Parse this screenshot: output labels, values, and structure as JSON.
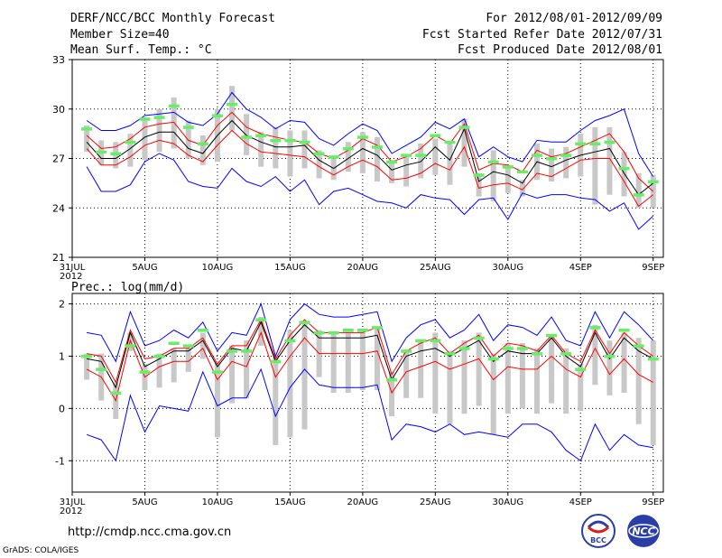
{
  "header": {
    "left": [
      "DERF/NCC/BCC Monthly Forecast",
      "Member Size=40",
      "Mean Surf. Temp.: °C"
    ],
    "right": [
      "For 2012/08/01-2012/09/09",
      "Fcst Started Refer Date 2012/07/31",
      "Fcst Produced Date 2012/08/01"
    ]
  },
  "footer": {
    "url": "http://cmdp.ncc.cma.gov.cn",
    "credit": "GrADS: COLA/IGES",
    "logo_left_text": "BCC",
    "logo_right_text": "NCC"
  },
  "colors": {
    "envelope": "#0000ff",
    "spread": "#ff0000",
    "mean": "#000000",
    "bar": "#c8c8c8",
    "marker": "#66ee66",
    "grid": "#000000"
  },
  "chart_data": [
    {
      "type": "line",
      "title": "Mean Surf. Temp.: °C",
      "x_tick_labels": [
        "31JUL",
        "5AUG",
        "10AUG",
        "15AUG",
        "20AUG",
        "25AUG",
        "30AUG",
        "4SEP",
        "9SEP"
      ],
      "x_tick_days": [
        0,
        5,
        10,
        15,
        20,
        25,
        30,
        35,
        40
      ],
      "year_label": "2012",
      "x_range_days": [
        0,
        40.7
      ],
      "ylim": [
        21,
        33
      ],
      "y_ticks": [
        21,
        24,
        27,
        30,
        33
      ],
      "y_tick_labels": [
        "21",
        "24",
        "27",
        "30",
        "33"
      ],
      "days": [
        1,
        2,
        3,
        4,
        5,
        6,
        7,
        8,
        9,
        10,
        11,
        12,
        13,
        14,
        15,
        16,
        17,
        18,
        19,
        20,
        21,
        22,
        23,
        24,
        25,
        26,
        27,
        28,
        29,
        30,
        31,
        32,
        33,
        34,
        35,
        36,
        37,
        38,
        39,
        40
      ],
      "series": [
        {
          "name": "max",
          "values": [
            29.3,
            28.7,
            28.7,
            29.0,
            29.6,
            29.7,
            29.8,
            29.2,
            29.0,
            29.7,
            31.0,
            30.0,
            29.5,
            28.8,
            29.3,
            29.2,
            28.2,
            27.8,
            28.5,
            29.1,
            28.7,
            27.3,
            27.8,
            28.3,
            29.2,
            28.8,
            29.4,
            27.1,
            27.7,
            27.1,
            26.8,
            28.1,
            28.0,
            28.0,
            28.7,
            29.3,
            29.6,
            30.0,
            27.3,
            25.9
          ]
        },
        {
          "name": "upper",
          "values": [
            28.4,
            27.6,
            27.7,
            28.2,
            28.9,
            29.1,
            29.2,
            28.1,
            27.8,
            29.0,
            29.8,
            28.9,
            28.5,
            28.3,
            28.1,
            28.0,
            27.3,
            27.0,
            27.5,
            28.2,
            27.8,
            26.8,
            27.1,
            27.6,
            28.4,
            27.9,
            29.1,
            26.3,
            26.7,
            26.6,
            26.2,
            27.5,
            27.1,
            27.3,
            27.7,
            28.1,
            28.5,
            27.4,
            25.8,
            25.0
          ]
        },
        {
          "name": "mean",
          "values": [
            28.0,
            27.0,
            27.0,
            27.6,
            28.3,
            28.6,
            28.6,
            27.6,
            27.3,
            28.4,
            29.3,
            28.4,
            28.0,
            27.7,
            27.7,
            27.8,
            26.9,
            26.4,
            27.0,
            27.6,
            27.2,
            26.3,
            26.6,
            26.8,
            27.7,
            26.9,
            28.8,
            25.6,
            26.2,
            26.0,
            25.5,
            26.8,
            26.5,
            26.9,
            27.2,
            27.4,
            27.6,
            26.1,
            24.8,
            25.5
          ]
        },
        {
          "name": "lower",
          "values": [
            27.6,
            26.6,
            26.6,
            27.1,
            27.8,
            28.1,
            27.9,
            27.2,
            26.8,
            27.8,
            28.7,
            27.9,
            27.4,
            27.3,
            27.2,
            27.1,
            26.5,
            26.0,
            26.5,
            26.9,
            26.5,
            25.7,
            25.8,
            26.1,
            26.7,
            26.3,
            27.7,
            25.2,
            25.4,
            25.5,
            25.1,
            26.1,
            25.9,
            26.4,
            26.9,
            27.0,
            27.0,
            25.6,
            24.1,
            24.8
          ]
        },
        {
          "name": "min",
          "values": [
            26.5,
            25.0,
            25.0,
            25.4,
            26.8,
            27.3,
            26.9,
            25.6,
            25.3,
            25.2,
            26.4,
            25.6,
            25.3,
            25.9,
            25.0,
            25.7,
            24.2,
            25.0,
            25.2,
            24.8,
            24.4,
            24.3,
            24.0,
            24.8,
            24.6,
            24.5,
            23.6,
            24.5,
            24.6,
            23.3,
            24.9,
            24.6,
            24.8,
            24.8,
            24.6,
            24.5,
            23.8,
            24.3,
            22.7,
            23.5
          ]
        }
      ],
      "bars": {
        "name": "gray-bars",
        "low": [
          27.4,
          26.6,
          26.4,
          26.5,
          26.9,
          27.4,
          27.6,
          27.0,
          26.6,
          26.8,
          28.7,
          27.2,
          26.5,
          26.4,
          25.9,
          26.4,
          25.8,
          25.7,
          26.2,
          26.1,
          25.6,
          25.5,
          25.3,
          25.8,
          26.0,
          25.4,
          26.5,
          24.7,
          24.4,
          24.9,
          24.7,
          25.7,
          25.6,
          25.8,
          25.9,
          24.2,
          24.8,
          24.7,
          24.0,
          24.0
        ],
        "high": [
          29.0,
          28.1,
          28.0,
          28.5,
          29.4,
          30.0,
          30.7,
          29.3,
          28.4,
          30.0,
          31.4,
          29.7,
          28.6,
          28.9,
          28.7,
          28.7,
          27.5,
          27.1,
          28.0,
          28.6,
          28.3,
          26.9,
          27.2,
          27.9,
          28.2,
          27.9,
          29.4,
          26.1,
          27.5,
          26.5,
          25.7,
          27.9,
          27.6,
          27.7,
          28.5,
          28.9,
          28.9,
          27.4,
          26.1,
          26.0
        ]
      },
      "markers": {
        "name": "green-markers",
        "values": [
          28.8,
          27.4,
          27.3,
          28.0,
          29.4,
          29.5,
          30.2,
          28.9,
          27.9,
          29.6,
          30.3,
          28.3,
          28.4,
          28.1,
          28.1,
          28.0,
          27.3,
          27.1,
          27.6,
          28.3,
          27.7,
          26.8,
          27.2,
          27.2,
          28.4,
          28.0,
          28.9,
          26.0,
          26.8,
          26.5,
          26.2,
          27.2,
          27.0,
          27.2,
          27.9,
          27.9,
          28.0,
          26.4,
          24.8,
          25.6
        ]
      }
    },
    {
      "type": "line",
      "title": "Prec.: log(mm/d)",
      "x_tick_labels": [
        "31JUL",
        "5AUG",
        "10AUG",
        "15AUG",
        "20AUG",
        "25AUG",
        "30AUG",
        "4SEP",
        "9SEP"
      ],
      "x_tick_days": [
        0,
        5,
        10,
        15,
        20,
        25,
        30,
        35,
        40
      ],
      "year_label": "2012",
      "x_range_days": [
        0,
        40.7
      ],
      "ylim": [
        -1.6,
        2.2
      ],
      "y_ticks": [
        -1,
        0,
        1,
        2
      ],
      "y_tick_labels": [
        "-1",
        "0",
        "1",
        "2"
      ],
      "days": [
        1,
        2,
        3,
        4,
        5,
        6,
        7,
        8,
        9,
        10,
        11,
        12,
        13,
        14,
        15,
        16,
        17,
        18,
        19,
        20,
        21,
        22,
        23,
        24,
        25,
        26,
        27,
        28,
        29,
        30,
        31,
        32,
        33,
        34,
        35,
        36,
        37,
        38,
        39,
        40
      ],
      "series": [
        {
          "name": "max",
          "values": [
            1.45,
            1.4,
            0.9,
            1.85,
            1.2,
            1.3,
            1.5,
            1.35,
            1.65,
            1.1,
            1.45,
            1.4,
            2.0,
            1.0,
            1.7,
            2.0,
            1.8,
            1.75,
            1.75,
            1.8,
            1.85,
            0.9,
            1.35,
            1.6,
            1.7,
            1.35,
            1.5,
            1.8,
            1.3,
            1.6,
            1.55,
            1.4,
            1.75,
            1.3,
            1.2,
            1.85,
            1.35,
            1.85,
            1.6,
            1.3
          ]
        },
        {
          "name": "upper",
          "values": [
            1.05,
            1.0,
            0.5,
            1.5,
            0.95,
            1.0,
            1.15,
            1.15,
            1.35,
            0.85,
            1.2,
            1.2,
            1.7,
            0.95,
            1.4,
            1.7,
            1.45,
            1.45,
            1.45,
            1.45,
            1.55,
            0.65,
            1.1,
            1.25,
            1.35,
            1.05,
            1.25,
            1.4,
            1.0,
            1.25,
            1.2,
            1.1,
            1.4,
            1.05,
            0.9,
            1.5,
            1.05,
            1.45,
            1.2,
            1.0
          ]
        },
        {
          "name": "mean",
          "values": [
            0.95,
            0.9,
            0.4,
            1.45,
            0.8,
            0.95,
            1.1,
            1.1,
            1.3,
            0.8,
            1.15,
            1.1,
            1.65,
            0.9,
            1.3,
            1.6,
            1.35,
            1.35,
            1.35,
            1.35,
            1.4,
            0.55,
            1.0,
            1.1,
            1.15,
            1.0,
            1.15,
            1.3,
            0.9,
            1.1,
            1.05,
            1.05,
            1.35,
            1.0,
            0.8,
            1.45,
            0.95,
            1.35,
            1.1,
            0.95
          ]
        },
        {
          "name": "lower",
          "values": [
            0.75,
            0.6,
            0.15,
            1.3,
            0.6,
            0.8,
            0.9,
            0.9,
            1.15,
            0.55,
            0.9,
            0.8,
            1.45,
            0.6,
            1.0,
            1.35,
            1.05,
            1.05,
            1.05,
            1.05,
            1.1,
            0.3,
            0.7,
            0.8,
            0.9,
            0.75,
            0.85,
            0.95,
            0.55,
            0.8,
            0.75,
            0.75,
            1.0,
            0.75,
            0.6,
            1.15,
            0.65,
            0.95,
            0.65,
            0.5
          ]
        },
        {
          "name": "min",
          "values": [
            -0.5,
            -0.6,
            -1.0,
            0.25,
            -0.45,
            0.05,
            0.0,
            -0.05,
            0.7,
            0.05,
            0.2,
            0.2,
            0.75,
            -0.15,
            0.4,
            0.75,
            0.45,
            0.4,
            0.4,
            0.4,
            0.45,
            -0.6,
            -0.3,
            -0.35,
            -0.45,
            -0.3,
            -0.5,
            -0.45,
            -0.5,
            -0.55,
            -0.3,
            -0.3,
            -0.45,
            -0.8,
            -1.0,
            -0.3,
            -0.8,
            -0.5,
            -0.7,
            -0.75
          ]
        }
      ],
      "bars": {
        "name": "gray-bars",
        "low": [
          0.55,
          0.15,
          -0.2,
          1.1,
          0.35,
          0.4,
          0.5,
          0.7,
          0.95,
          -0.55,
          0.1,
          0.2,
          1.2,
          -0.7,
          -0.55,
          -0.4,
          0.6,
          0.3,
          0.3,
          0.35,
          0.35,
          -0.15,
          0.2,
          0.2,
          -0.1,
          -0.3,
          -0.1,
          0.05,
          -0.5,
          -0.1,
          0.0,
          -0.1,
          0.1,
          -0.1,
          -0.05,
          0.45,
          0.25,
          0.3,
          -0.3,
          -0.7
        ],
        "high": [
          1.05,
          1.05,
          0.5,
          1.45,
          0.85,
          1.05,
          1.15,
          1.15,
          1.45,
          0.9,
          1.2,
          1.3,
          1.75,
          1.0,
          1.5,
          1.65,
          1.5,
          1.45,
          1.45,
          1.45,
          1.55,
          0.7,
          1.1,
          1.3,
          1.45,
          1.1,
          1.3,
          1.45,
          1.05,
          1.25,
          1.25,
          1.15,
          1.4,
          1.15,
          0.85,
          1.6,
          1.3,
          1.45,
          1.35,
          1.3
        ]
      },
      "markers": {
        "name": "green-markers",
        "values": [
          1.0,
          0.75,
          0.3,
          1.2,
          0.7,
          1.0,
          1.25,
          1.2,
          1.5,
          0.7,
          1.1,
          1.1,
          1.7,
          0.9,
          1.3,
          1.65,
          1.45,
          1.45,
          1.5,
          1.5,
          1.55,
          0.55,
          1.1,
          1.3,
          1.3,
          1.05,
          1.15,
          1.35,
          0.95,
          1.15,
          1.15,
          1.05,
          1.4,
          1.05,
          0.75,
          1.55,
          1.0,
          1.5,
          1.2,
          0.95
        ]
      }
    }
  ]
}
